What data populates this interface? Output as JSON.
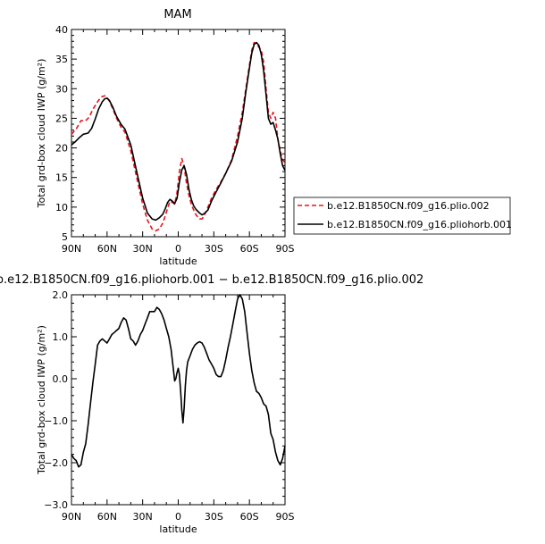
{
  "chart_data": [
    {
      "type": "line",
      "title": "MAM",
      "xlabel": "latitude",
      "ylabel": "Total grd-box cloud IWP (g/m²)",
      "xlim": [
        90,
        -90
      ],
      "ylim": [
        5,
        40
      ],
      "x_ticks": [
        {
          "v": 90,
          "label": "90N"
        },
        {
          "v": 60,
          "label": "60N"
        },
        {
          "v": 30,
          "label": "30N"
        },
        {
          "v": 0,
          "label": "0"
        },
        {
          "v": -30,
          "label": "30S"
        },
        {
          "v": -60,
          "label": "60S"
        },
        {
          "v": -90,
          "label": "90S"
        }
      ],
      "y_ticks": [
        5,
        10,
        15,
        20,
        25,
        30,
        35,
        40
      ],
      "legend_position": "right",
      "series": [
        {
          "name": "b.e12.B1850CN.f09_g16.plio.002",
          "color": "#e8141b",
          "dash": "dashed",
          "x": [
            90,
            86,
            82,
            78,
            75,
            72,
            68,
            65,
            62,
            60,
            58,
            55,
            52,
            48,
            45,
            40,
            35,
            30,
            26,
            22,
            19,
            16,
            13,
            11,
            9,
            7,
            5,
            3,
            1,
            -1,
            -3,
            -5,
            -7,
            -9,
            -11,
            -13,
            -15,
            -18,
            -20,
            -22,
            -25,
            -28,
            -32,
            -36,
            -40,
            -45,
            -50,
            -54,
            -57,
            -60,
            -62,
            -64,
            -66,
            -68,
            -70,
            -72,
            -74,
            -76,
            -78,
            -80,
            -82,
            -84,
            -86,
            -88,
            -90
          ],
          "y": [
            22.3,
            23.2,
            24.6,
            24.6,
            25.2,
            26.5,
            27.8,
            28.6,
            28.8,
            28.5,
            27.9,
            26.5,
            25.0,
            23.4,
            22.7,
            19.5,
            15.0,
            10.5,
            7.8,
            6.3,
            6.0,
            6.3,
            7.3,
            8.5,
            9.8,
            11.0,
            10.8,
            10.5,
            12.5,
            16.0,
            18.2,
            16.8,
            14.0,
            12.0,
            10.5,
            9.5,
            8.7,
            8.0,
            8.0,
            8.6,
            10.0,
            11.5,
            13.0,
            14.3,
            15.7,
            18.0,
            22.0,
            26.0,
            30.0,
            34.0,
            36.5,
            37.8,
            37.6,
            37.0,
            36.5,
            34.5,
            30.0,
            26.0,
            25.0,
            26.0,
            25.0,
            21.5,
            19.5,
            18.0,
            17.5
          ]
        },
        {
          "name": "b.e12.B1850CN.f09_g16.pliohorb.001",
          "color": "#000000",
          "dash": "solid",
          "x": [
            90,
            87,
            83,
            80,
            76,
            73,
            70,
            67,
            64,
            62,
            60,
            58,
            55,
            52,
            48,
            45,
            40,
            35,
            30,
            26,
            22,
            19,
            16,
            13,
            11,
            9,
            7,
            5,
            3,
            1,
            -1,
            -3,
            -5,
            -7,
            -9,
            -11,
            -13,
            -15,
            -18,
            -20,
            -22,
            -25,
            -28,
            -32,
            -36,
            -40,
            -45,
            -50,
            -54,
            -57,
            -60,
            -62,
            -64,
            -66,
            -68,
            -70,
            -72,
            -74,
            -76,
            -78,
            -80,
            -82,
            -84,
            -86,
            -88,
            -90
          ],
          "y": [
            20.5,
            21.0,
            21.8,
            22.3,
            22.5,
            23.3,
            24.9,
            26.6,
            27.8,
            28.3,
            28.4,
            28.0,
            26.8,
            25.3,
            23.9,
            23.2,
            20.5,
            16.0,
            11.5,
            9.0,
            8.0,
            7.8,
            8.2,
            8.8,
            9.7,
            10.8,
            11.3,
            11.0,
            10.6,
            11.5,
            14.2,
            16.3,
            17.0,
            15.5,
            13.0,
            11.3,
            10.2,
            9.6,
            9.0,
            8.7,
            8.9,
            9.5,
            11.0,
            12.6,
            14.1,
            15.7,
            17.8,
            21.0,
            25.0,
            29.5,
            33.5,
            36.0,
            37.5,
            37.8,
            37.3,
            35.8,
            33.0,
            29.0,
            25.0,
            24.0,
            24.3,
            23.0,
            21.5,
            19.0,
            17.0,
            16.2
          ]
        }
      ]
    },
    {
      "type": "line",
      "title": "b.e12.B1850CN.f09_g16.pliohorb.001 − b.e12.B1850CN.f09_g16.plio.002",
      "xlabel": "latitude",
      "ylabel": "Total grd-box cloud IWP (g/m²)",
      "xlim": [
        90,
        -90
      ],
      "ylim": [
        -3.0,
        2.0
      ],
      "x_ticks": [
        {
          "v": 90,
          "label": "90N"
        },
        {
          "v": 60,
          "label": "60N"
        },
        {
          "v": 30,
          "label": "30N"
        },
        {
          "v": 0,
          "label": "0"
        },
        {
          "v": -30,
          "label": "30S"
        },
        {
          "v": -60,
          "label": "60S"
        },
        {
          "v": -90,
          "label": "90S"
        }
      ],
      "y_ticks": [
        {
          "v": -3.0,
          "label": "−3.0"
        },
        {
          "v": -2.0,
          "label": "−2.0"
        },
        {
          "v": -1.0,
          "label": "−1.0"
        },
        {
          "v": 0.0,
          "label": "0.0"
        },
        {
          "v": 1.0,
          "label": "1.0"
        },
        {
          "v": 2.0,
          "label": "2.0"
        }
      ],
      "series": [
        {
          "name": "",
          "color": "#000000",
          "dash": "solid",
          "x": [
            90,
            88,
            86,
            84,
            82,
            80,
            78,
            76,
            74,
            72,
            70,
            68,
            66,
            64,
            62,
            60,
            58,
            56,
            54,
            52,
            50,
            48,
            46,
            44,
            42,
            40,
            38,
            36,
            34,
            32,
            30,
            28,
            26,
            24,
            22,
            20,
            18,
            16,
            14,
            12,
            10,
            8,
            6,
            4,
            3,
            2,
            1,
            0,
            -1,
            -2,
            -3,
            -4,
            -5,
            -6,
            -7,
            -8,
            -10,
            -12,
            -14,
            -16,
            -18,
            -20,
            -22,
            -24,
            -26,
            -28,
            -30,
            -32,
            -34,
            -36,
            -38,
            -40,
            -42,
            -44,
            -46,
            -48,
            -50,
            -52,
            -54,
            -56,
            -58,
            -60,
            -62,
            -64,
            -66,
            -68,
            -70,
            -72,
            -74,
            -76,
            -78,
            -80,
            -82,
            -84,
            -86,
            -88,
            -90
          ],
          "y": [
            -1.8,
            -1.9,
            -1.95,
            -2.1,
            -2.05,
            -1.75,
            -1.55,
            -1.1,
            -0.6,
            -0.1,
            0.35,
            0.8,
            0.9,
            0.95,
            0.9,
            0.85,
            0.95,
            1.05,
            1.1,
            1.15,
            1.2,
            1.35,
            1.45,
            1.4,
            1.2,
            0.95,
            0.9,
            0.8,
            0.9,
            1.05,
            1.15,
            1.3,
            1.45,
            1.6,
            1.6,
            1.6,
            1.7,
            1.65,
            1.55,
            1.4,
            1.2,
            1.0,
            0.7,
            0.2,
            -0.05,
            0.0,
            0.15,
            0.25,
            0.1,
            -0.3,
            -0.75,
            -1.05,
            -0.7,
            -0.15,
            0.2,
            0.4,
            0.55,
            0.7,
            0.8,
            0.85,
            0.88,
            0.85,
            0.75,
            0.6,
            0.45,
            0.35,
            0.25,
            0.1,
            0.05,
            0.05,
            0.2,
            0.45,
            0.75,
            1.0,
            1.3,
            1.6,
            1.9,
            2.0,
            1.9,
            1.6,
            1.1,
            0.6,
            0.2,
            -0.1,
            -0.3,
            -0.35,
            -0.45,
            -0.6,
            -0.65,
            -0.85,
            -1.3,
            -1.45,
            -1.75,
            -1.95,
            -2.05,
            -1.9,
            -1.6
          ]
        }
      ]
    }
  ]
}
